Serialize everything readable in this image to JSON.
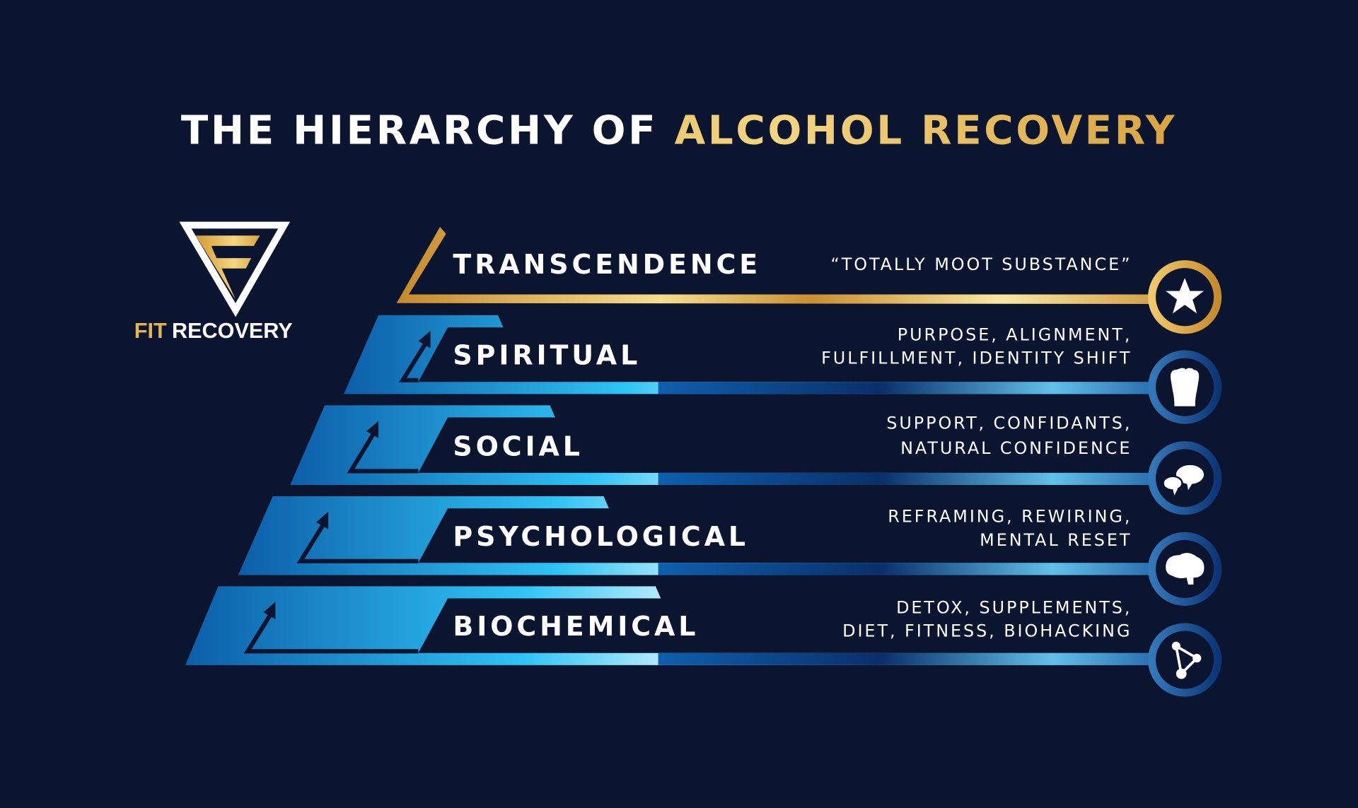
{
  "title": {
    "part1": "THE HIERARCHY OF ",
    "part2": "ALCOHOL RECOVERY"
  },
  "logo": {
    "word1": "FIT",
    "word2": "RECOVERY"
  },
  "levels": [
    {
      "name": "TRANSCENDENCE",
      "desc": [
        "“TOTALLY MOOT SUBSTANCE”"
      ],
      "icon": "star-icon"
    },
    {
      "name": "SPIRITUAL",
      "desc": [
        "PURPOSE, ALIGNMENT,",
        "FULFILLMENT, IDENTITY SHIFT"
      ],
      "icon": "hands-icon"
    },
    {
      "name": "SOCIAL",
      "desc": [
        "SUPPORT, CONFIDANTS,",
        "NATURAL CONFIDENCE"
      ],
      "icon": "speech-bubbles-icon"
    },
    {
      "name": "PSYCHOLOGICAL",
      "desc": [
        "REFRAMING, REWIRING,",
        "MENTAL RESET"
      ],
      "icon": "brain-icon"
    },
    {
      "name": "BIOCHEMICAL",
      "desc": [
        "DETOX, SUPPLEMENTS,",
        "DIET, FITNESS, BIOHACKING"
      ],
      "icon": "molecule-icon"
    }
  ],
  "colors": {
    "background": "#0b1530",
    "gold": "#d9a441",
    "gold_light": "#f8e39c",
    "blue": "#1e88d6",
    "blue_light": "#5ec4f0",
    "text": "#ffffff"
  }
}
